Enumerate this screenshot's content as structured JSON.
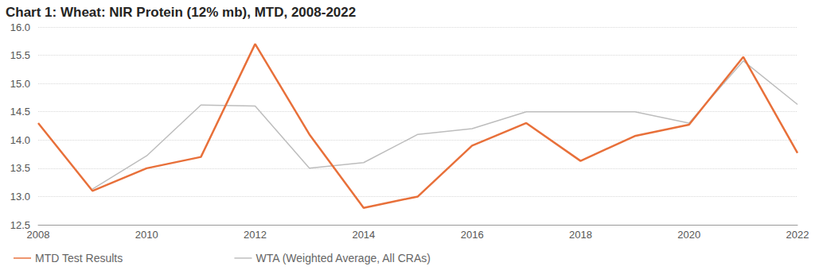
{
  "chart_data": {
    "type": "line",
    "title": "Chart 1: Wheat: NIR Protein (12% mb), MTD, 2008-2022",
    "x": [
      2008,
      2009,
      2010,
      2011,
      2012,
      2013,
      2014,
      2015,
      2016,
      2017,
      2018,
      2019,
      2020,
      2021,
      2022
    ],
    "series": [
      {
        "name": "MTD Test Results",
        "color": "#e8703a",
        "values": [
          14.3,
          13.1,
          13.5,
          13.7,
          15.7,
          14.1,
          12.8,
          13.0,
          13.9,
          14.3,
          13.63,
          14.07,
          14.27,
          15.47,
          13.77
        ]
      },
      {
        "name": "WTA (Weighted Average, All CRAs)",
        "color": "#bdbdbd",
        "values": [
          null,
          13.13,
          13.72,
          14.62,
          14.6,
          13.5,
          13.6,
          14.1,
          14.2,
          14.5,
          14.5,
          14.5,
          14.3,
          15.4,
          14.63
        ]
      }
    ],
    "xlim": [
      2008,
      2022
    ],
    "xticks": [
      2008,
      2010,
      2012,
      2014,
      2016,
      2018,
      2020,
      2022
    ],
    "ylim": [
      12.5,
      16.0
    ],
    "yticks": [
      12.5,
      {
        "value": 13,
        "label": "13.0"
      },
      13.5,
      {
        "value": 14,
        "label": "14.0"
      },
      14.5,
      {
        "value": 15,
        "label": "15.0"
      },
      15.5,
      {
        "value": 16,
        "label": "16.0"
      }
    ],
    "grid": true,
    "legend": "bottom-left"
  }
}
